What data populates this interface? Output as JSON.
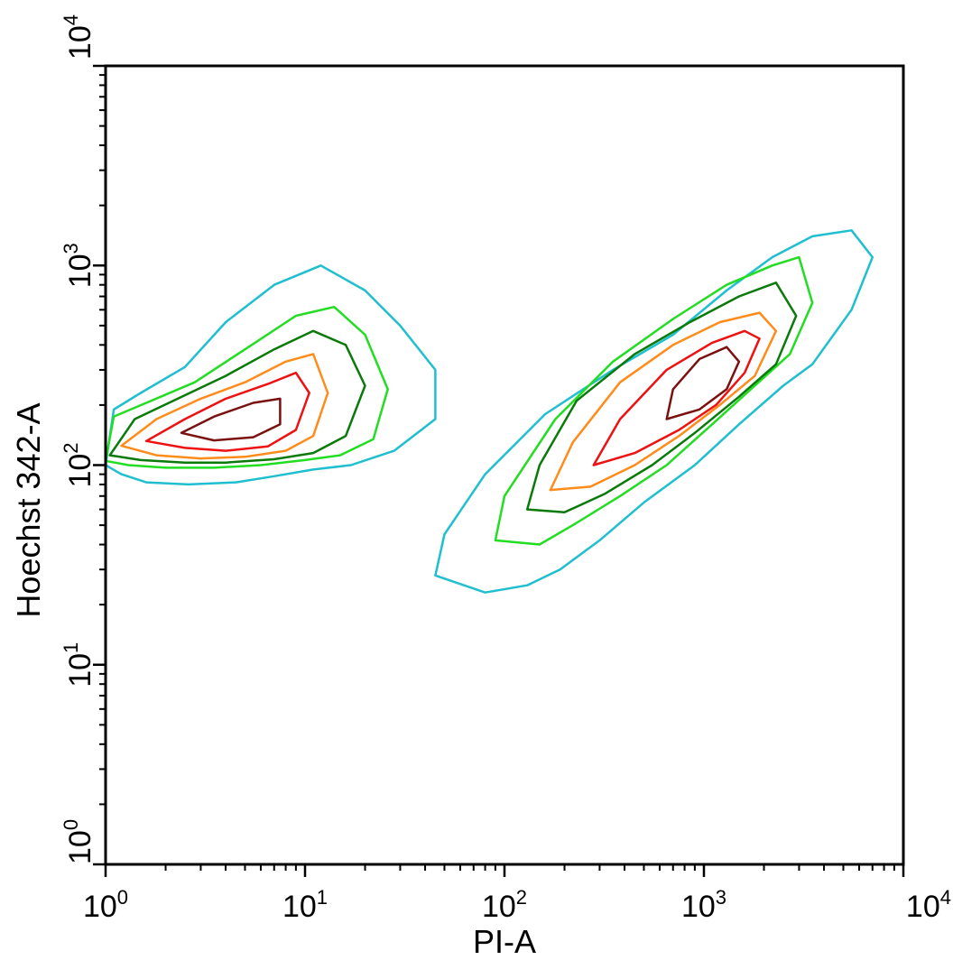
{
  "chart_data": {
    "type": "contour",
    "xlabel": "PI-A",
    "ylabel": "Hoechst 342-A",
    "x_scale": "log",
    "y_scale": "log",
    "xlim": [
      1,
      10000
    ],
    "ylim": [
      1,
      10000
    ],
    "x_ticks": [
      {
        "base": "10",
        "exp": "0"
      },
      {
        "base": "10",
        "exp": "1"
      },
      {
        "base": "10",
        "exp": "2"
      },
      {
        "base": "10",
        "exp": "3"
      },
      {
        "base": "10",
        "exp": "4"
      }
    ],
    "y_ticks": [
      {
        "base": "10",
        "exp": "0"
      },
      {
        "base": "10",
        "exp": "1"
      },
      {
        "base": "10",
        "exp": "2"
      },
      {
        "base": "10",
        "exp": "3"
      },
      {
        "base": "10",
        "exp": "4"
      }
    ],
    "grid": false,
    "contour_colors": [
      "#1fbfcf",
      "#22dd22",
      "#0a7a0a",
      "#ff8c1a",
      "#ee1111",
      "#7a1010"
    ],
    "clusters": [
      {
        "center": [
          4,
          150
        ],
        "contours": [
          {
            "level": 1,
            "color": "#1fbfcf",
            "x": [
              1,
              1.2,
              1.6,
              2.6,
              4.5,
              7,
              11,
              17,
              28,
              45,
              45,
              30,
              20,
              12,
              7,
              4,
              2.5,
              1.5,
              1.1
            ],
            "y": [
              100,
              90,
              82,
              80,
              82,
              88,
              95,
              100,
              118,
              170,
              300,
              500,
              750,
              1000,
              800,
              520,
              310,
              230,
              190
            ]
          },
          {
            "level": 2,
            "color": "#22dd22",
            "x": [
              1,
              1.3,
              2,
              3.5,
              6,
              10,
              15,
              22,
              26,
              20,
              14,
              9,
              5,
              2.8,
              1.6,
              1.1
            ],
            "y": [
              105,
              100,
              97,
              97,
              100,
              106,
              112,
              135,
              240,
              450,
              620,
              560,
              380,
              260,
              205,
              175
            ]
          },
          {
            "level": 3,
            "color": "#0a7a0a",
            "x": [
              1.05,
              1.5,
              2.5,
              4,
              7,
              11,
              16,
              20,
              16,
              11,
              7,
              4,
              2.3,
              1.4
            ],
            "y": [
              112,
              106,
              103,
              103,
              107,
              115,
              140,
              250,
              400,
              470,
              380,
              280,
              215,
              170
            ]
          },
          {
            "level": 4,
            "color": "#ff8c1a",
            "x": [
              1.2,
              1.8,
              3,
              5,
              8,
              11,
              13,
              11,
              8,
              5,
              3,
              1.8
            ],
            "y": [
              125,
              112,
              108,
              110,
              118,
              140,
              230,
              360,
              330,
              260,
              215,
              170
            ]
          },
          {
            "level": 5,
            "color": "#ee1111",
            "x": [
              1.6,
              2.5,
              4,
              6.5,
              9,
              10.5,
              9,
              6.5,
              4,
              2.5
            ],
            "y": [
              132,
              122,
              118,
              124,
              150,
              230,
              290,
              255,
              215,
              170
            ]
          },
          {
            "level": 6,
            "color": "#7a1010",
            "x": [
              2.4,
              3.5,
              5.5,
              7.5,
              7.5,
              5.5,
              3.5
            ],
            "y": [
              145,
              133,
              138,
              160,
              215,
              205,
              175
            ]
          }
        ]
      },
      {
        "center": [
          700,
          220
        ],
        "contours": [
          {
            "level": 1,
            "color": "#1fbfcf",
            "x": [
              45,
              80,
              130,
              190,
              300,
              500,
              900,
              1500,
              2500,
              3500,
              5500,
              7000,
              5500,
              3500,
              2200,
              1300,
              700,
              350,
              160,
              80,
              50
            ],
            "y": [
              28,
              23,
              25,
              30,
              42,
              65,
              100,
              160,
              250,
              320,
              600,
              1100,
              1500,
              1400,
              1100,
              750,
              450,
              300,
              180,
              90,
              45
            ]
          },
          {
            "level": 2,
            "color": "#22dd22",
            "x": [
              90,
              150,
              220,
              380,
              650,
              1100,
              1800,
              2700,
              3500,
              3000,
              2200,
              1300,
              700,
              350,
              180,
              100
            ],
            "y": [
              42,
              40,
              50,
              70,
              100,
              160,
              250,
              360,
              650,
              1100,
              1000,
              800,
              540,
              330,
              170,
              70
            ]
          },
          {
            "level": 3,
            "color": "#0a7a0a",
            "x": [
              130,
              200,
              320,
              550,
              900,
              1500,
              2300,
              2900,
              2300,
              1500,
              850,
              450,
              230,
              150
            ],
            "y": [
              60,
              58,
              72,
              100,
              145,
              220,
              320,
              560,
              820,
              700,
              520,
              360,
              210,
              100
            ]
          },
          {
            "level": 4,
            "color": "#ff8c1a",
            "x": [
              170,
              270,
              450,
              750,
              1200,
              1800,
              2300,
              1900,
              1200,
              700,
              380,
              220
            ],
            "y": [
              75,
              78,
              100,
              140,
              200,
              280,
              470,
              580,
              520,
              400,
              260,
              130
            ]
          },
          {
            "level": 5,
            "color": "#ee1111",
            "x": [
              280,
              450,
              750,
              1150,
              1600,
              1900,
              1600,
              1100,
              650,
              380
            ],
            "y": [
              100,
              115,
              150,
              200,
              290,
              430,
              470,
              410,
              300,
              170
            ]
          },
          {
            "level": 6,
            "color": "#7a1010",
            "x": [
              650,
              950,
              1300,
              1500,
              1300,
              950,
              700
            ],
            "y": [
              170,
              190,
              240,
              330,
              390,
              340,
              240
            ]
          }
        ]
      }
    ]
  }
}
